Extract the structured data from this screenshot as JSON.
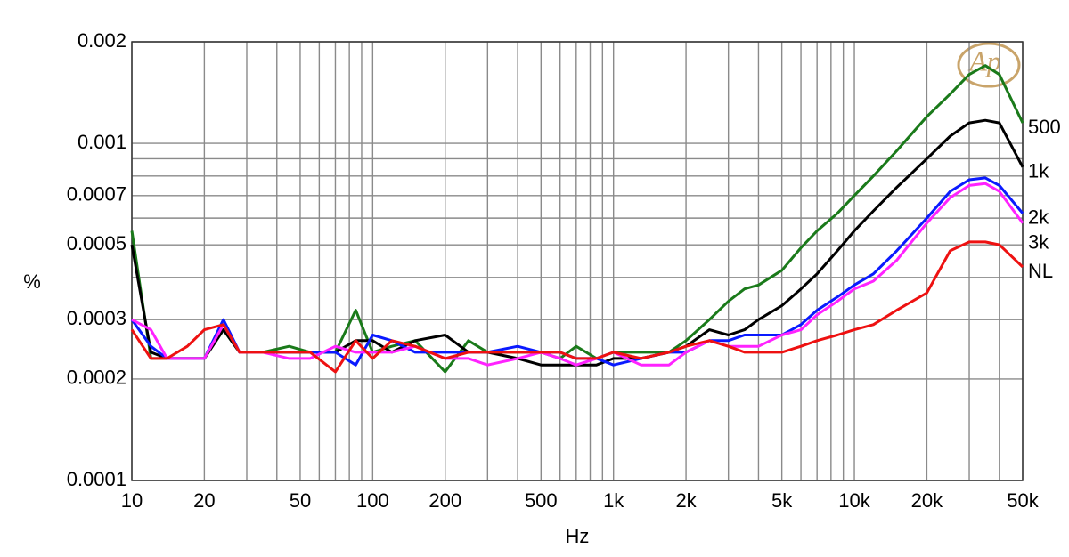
{
  "chart_data": {
    "type": "line",
    "xlabel": "Hz",
    "ylabel": "%",
    "logo": "Ap",
    "xscale": "log",
    "yscale": "log",
    "grid": true,
    "xlim": [
      10,
      50000
    ],
    "ylim": [
      0.0001,
      0.002
    ],
    "xticks": [
      10,
      20,
      50,
      100,
      200,
      500,
      {
        "value": 1000,
        "label": "1k"
      },
      {
        "value": 2000,
        "label": "2k"
      },
      {
        "value": 5000,
        "label": "5k"
      },
      {
        "value": 10000,
        "label": "10k"
      },
      {
        "value": 20000,
        "label": "20k"
      },
      {
        "value": 50000,
        "label": "50k"
      }
    ],
    "x_minor_grid": [
      30,
      40,
      60,
      70,
      80,
      90,
      300,
      400,
      600,
      700,
      800,
      900,
      3000,
      4000,
      6000,
      7000,
      8000,
      9000,
      30000,
      40000
    ],
    "yticks": [
      0.0001,
      0.0002,
      0.0003,
      0.0005,
      0.0007,
      0.001,
      0.002
    ],
    "y_minor_grid": [
      0.0004,
      0.0006,
      0.0008,
      0.0009
    ],
    "x": [
      10,
      12,
      14,
      17,
      20,
      24,
      28,
      35,
      45,
      55,
      70,
      85,
      100,
      120,
      150,
      200,
      250,
      300,
      400,
      500,
      600,
      700,
      850,
      1000,
      1300,
      1700,
      2000,
      2500,
      3000,
      3500,
      4000,
      5000,
      6000,
      7000,
      8500,
      10000,
      12000,
      15000,
      20000,
      25000,
      30000,
      35000,
      40000,
      50000
    ],
    "series": [
      {
        "name": "500",
        "color": "#1a7a1a",
        "values": [
          0.00055,
          0.00023,
          0.00023,
          0.00023,
          0.00023,
          0.00028,
          0.00024,
          0.00024,
          0.00025,
          0.00024,
          0.00024,
          0.00032,
          0.00024,
          0.00025,
          0.00026,
          0.00021,
          0.00026,
          0.00024,
          0.00024,
          0.00024,
          0.00023,
          0.00025,
          0.00023,
          0.00024,
          0.00024,
          0.00024,
          0.00026,
          0.0003,
          0.00034,
          0.00037,
          0.00038,
          0.00042,
          0.00049,
          0.00055,
          0.00062,
          0.0007,
          0.0008,
          0.00095,
          0.0012,
          0.0014,
          0.0016,
          0.0017,
          0.0016,
          0.00115
        ]
      },
      {
        "name": "1k",
        "color": "#000000",
        "values": [
          0.0005,
          0.00024,
          0.00023,
          0.00023,
          0.00023,
          0.00028,
          0.00024,
          0.00024,
          0.00024,
          0.00024,
          0.00024,
          0.00026,
          0.00026,
          0.00024,
          0.00026,
          0.00027,
          0.00024,
          0.00024,
          0.00023,
          0.00022,
          0.00022,
          0.00022,
          0.00022,
          0.00023,
          0.00023,
          0.00024,
          0.00025,
          0.00028,
          0.00027,
          0.00028,
          0.0003,
          0.00033,
          0.00037,
          0.00041,
          0.00048,
          0.00055,
          0.00063,
          0.00074,
          0.0009,
          0.00105,
          0.00115,
          0.00117,
          0.00115,
          0.00085
        ]
      },
      {
        "name": "2k",
        "color": "#0a1aff",
        "values": [
          0.0003,
          0.00025,
          0.00023,
          0.00023,
          0.00023,
          0.0003,
          0.00024,
          0.00024,
          0.00024,
          0.00024,
          0.00024,
          0.00022,
          0.00027,
          0.00026,
          0.00024,
          0.00024,
          0.00024,
          0.00024,
          0.00025,
          0.00024,
          0.00024,
          0.00023,
          0.00023,
          0.00022,
          0.00023,
          0.00024,
          0.00024,
          0.00026,
          0.00026,
          0.00027,
          0.00027,
          0.00027,
          0.00029,
          0.00032,
          0.00035,
          0.00038,
          0.00041,
          0.00048,
          0.0006,
          0.00072,
          0.00078,
          0.00079,
          0.00075,
          0.00062
        ]
      },
      {
        "name": "3k",
        "color": "#ff22ff",
        "values": [
          0.0003,
          0.00028,
          0.00023,
          0.00023,
          0.00023,
          0.00029,
          0.00024,
          0.00024,
          0.00023,
          0.00023,
          0.00025,
          0.00024,
          0.00024,
          0.00024,
          0.00025,
          0.00023,
          0.00023,
          0.00022,
          0.00023,
          0.00024,
          0.00023,
          0.00022,
          0.00023,
          0.00024,
          0.00022,
          0.00022,
          0.00024,
          0.00026,
          0.00025,
          0.00025,
          0.00025,
          0.00027,
          0.00028,
          0.00031,
          0.00034,
          0.00037,
          0.00039,
          0.00045,
          0.00058,
          0.00069,
          0.00075,
          0.00076,
          0.00072,
          0.00058
        ]
      },
      {
        "name": "NL",
        "color": "#ee1111",
        "values": [
          0.00028,
          0.00023,
          0.00023,
          0.00025,
          0.00028,
          0.00029,
          0.00024,
          0.00024,
          0.00024,
          0.00024,
          0.00021,
          0.00026,
          0.00023,
          0.00026,
          0.00025,
          0.00023,
          0.00024,
          0.00024,
          0.00024,
          0.00024,
          0.00024,
          0.00023,
          0.00023,
          0.00024,
          0.00023,
          0.00024,
          0.00025,
          0.00026,
          0.00025,
          0.00024,
          0.00024,
          0.00024,
          0.00025,
          0.00026,
          0.00027,
          0.00028,
          0.00029,
          0.00032,
          0.00036,
          0.00048,
          0.00051,
          0.00051,
          0.0005,
          0.00043
        ]
      }
    ]
  }
}
